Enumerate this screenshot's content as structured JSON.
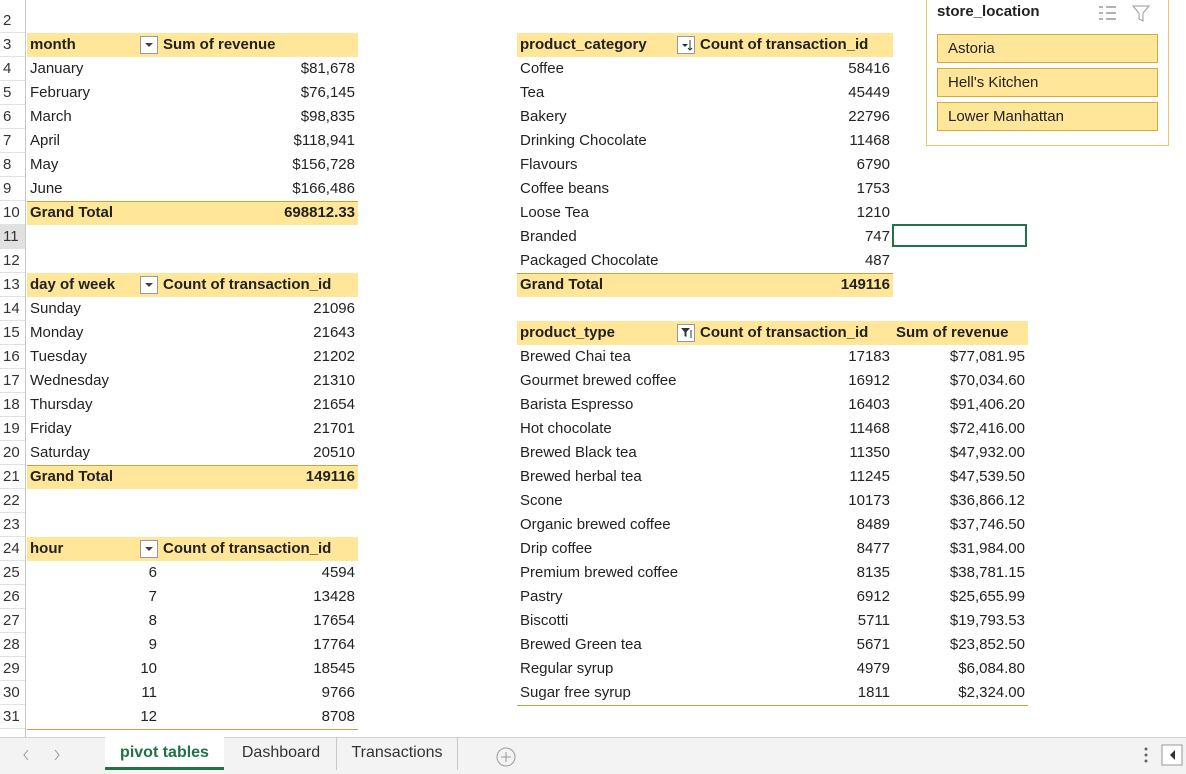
{
  "row_numbers": [
    2,
    3,
    4,
    5,
    6,
    7,
    8,
    9,
    10,
    11,
    12,
    13,
    14,
    15,
    16,
    17,
    18,
    19,
    20,
    21,
    22,
    23,
    24,
    25,
    26,
    27,
    28,
    29,
    30,
    31
  ],
  "tables": [
    {
      "headers": [
        "month",
        "Sum of revenue"
      ],
      "rows": [
        [
          "January",
          "$81,678"
        ],
        [
          "February",
          "$76,145"
        ],
        [
          "March",
          "$98,835"
        ],
        [
          "April",
          "$118,941"
        ],
        [
          "May",
          "$156,728"
        ],
        [
          "June",
          "$166,486"
        ]
      ],
      "total": [
        "Grand Total",
        "698812.33"
      ]
    },
    {
      "headers": [
        "day of week",
        "Count of transaction_id"
      ],
      "rows": [
        [
          "Sunday",
          "21096"
        ],
        [
          "Monday",
          "21643"
        ],
        [
          "Tuesday",
          "21202"
        ],
        [
          "Wednesday",
          "21310"
        ],
        [
          "Thursday",
          "21654"
        ],
        [
          "Friday",
          "21701"
        ],
        [
          "Saturday",
          "20510"
        ]
      ],
      "total": [
        "Grand Total",
        "149116"
      ]
    },
    {
      "headers": [
        "hour",
        "Count of transaction_id"
      ],
      "rows": [
        [
          "6",
          "4594"
        ],
        [
          "7",
          "13428"
        ],
        [
          "8",
          "17654"
        ],
        [
          "9",
          "17764"
        ],
        [
          "10",
          "18545"
        ],
        [
          "11",
          "9766"
        ],
        [
          "12",
          "8708"
        ]
      ]
    },
    {
      "headers": [
        "product_category",
        "Count of transaction_id"
      ],
      "rows": [
        [
          "Coffee",
          "58416"
        ],
        [
          "Tea",
          "45449"
        ],
        [
          "Bakery",
          "22796"
        ],
        [
          "Drinking Chocolate",
          "11468"
        ],
        [
          "Flavours",
          "6790"
        ],
        [
          "Coffee beans",
          "1753"
        ],
        [
          "Loose Tea",
          "1210"
        ],
        [
          "Branded",
          "747"
        ],
        [
          "Packaged Chocolate",
          "487"
        ]
      ],
      "total": [
        "Grand Total",
        "149116"
      ]
    },
    {
      "headers": [
        "product_type",
        "Count of transaction_id",
        "Sum of revenue"
      ],
      "rows": [
        [
          "Brewed Chai tea",
          "17183",
          "$77,081.95"
        ],
        [
          "Gourmet brewed coffee",
          "16912",
          "$70,034.60"
        ],
        [
          "Barista Espresso",
          "16403",
          "$91,406.20"
        ],
        [
          "Hot chocolate",
          "11468",
          "$72,416.00"
        ],
        [
          "Brewed Black tea",
          "11350",
          "$47,932.00"
        ],
        [
          "Brewed herbal tea",
          "11245",
          "$47,539.50"
        ],
        [
          "Scone",
          "10173",
          "$36,866.12"
        ],
        [
          "Organic brewed coffee",
          "8489",
          "$37,746.50"
        ],
        [
          "Drip coffee",
          "8477",
          "$31,984.00"
        ],
        [
          "Premium brewed coffee",
          "8135",
          "$38,781.15"
        ],
        [
          "Pastry",
          "6912",
          "$25,655.99"
        ],
        [
          "Biscotti",
          "5711",
          "$19,793.53"
        ],
        [
          "Brewed Green tea",
          "5671",
          "$23,852.50"
        ],
        [
          "Regular syrup",
          "4979",
          "$6,084.80"
        ],
        [
          "Sugar free syrup",
          "1811",
          "$2,324.00"
        ]
      ]
    }
  ],
  "slicer": {
    "title": "store_location",
    "items": [
      "Astoria",
      "Hell's Kitchen",
      "Lower Manhattan"
    ]
  },
  "sheet_tabs": [
    "pivot tables",
    "Dashboard",
    "Transactions"
  ]
}
